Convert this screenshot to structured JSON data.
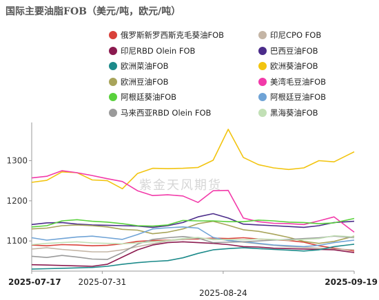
{
  "title": "国际主要油脂FOB（美元/吨，欧元/吨）",
  "watermark": "紫金天风期货",
  "chart_data": {
    "type": "line",
    "title": "国际主要油脂FOB（美元/吨，欧元/吨）",
    "xlabel": "",
    "ylabel": "",
    "ylim": [
      1025,
      1395
    ],
    "yticks": [
      1100,
      1200,
      1300
    ],
    "xticks": [
      "2025-07-17",
      "2025-07-31",
      "2025-08-24",
      "2025-09-19"
    ],
    "x": [
      "2025-07-17",
      "2025-07-20",
      "2025-07-23",
      "2025-07-26",
      "2025-07-29",
      "2025-08-01",
      "2025-08-04",
      "2025-08-07",
      "2025-08-10",
      "2025-08-13",
      "2025-08-16",
      "2025-08-19",
      "2025-08-22",
      "2025-08-25",
      "2025-08-28",
      "2025-08-31",
      "2025-09-03",
      "2025-09-06",
      "2025-09-09",
      "2025-09-12",
      "2025-09-15",
      "2025-09-19"
    ],
    "grid": false,
    "legend_position": "top",
    "series": [
      {
        "name": "俄罗斯新罗西斯克毛葵油FOB",
        "color": "#d9413a",
        "values": [
          1090,
          1088,
          1091,
          1090,
          1088,
          1089,
          1093,
          1099,
          1101,
          1102,
          1104,
          1105,
          1107,
          1106,
          1108,
          1105,
          1103,
          1101,
          1097,
          1088,
          1082,
          1075
        ]
      },
      {
        "name": "印尼CPO FOB",
        "color": "#c4b5a5",
        "values": [
          1080,
          1083,
          1079,
          1076,
          1073,
          1073,
          1078,
          1086,
          1093,
          1100,
          1104,
          1107,
          1105,
          1102,
          1097,
          1093,
          1089,
          1086,
          1084,
          1082,
          1080,
          1078
        ]
      },
      {
        "name": "印尼RBD Olein FOB",
        "color": "#8b1a4f",
        "values": [
          1041,
          1040,
          1039,
          1038,
          1037,
          1042,
          1060,
          1078,
          1090,
          1096,
          1098,
          1096,
          1094,
          1091,
          1086,
          1085,
          1082,
          1081,
          1080,
          1079,
          1078,
          1071
        ]
      },
      {
        "name": "巴西豆油FOB",
        "color": "#4b2c8a",
        "values": [
          1141,
          1145,
          1146,
          1142,
          1140,
          1139,
          1138,
          1137,
          1134,
          1138,
          1146,
          1160,
          1168,
          1157,
          1142,
          1140,
          1138,
          1136,
          1134,
          1138,
          1146,
          1149
        ]
      },
      {
        "name": "欧洲菜油FOB",
        "color": "#1c8a8a",
        "values": [
          1030,
          1031,
          1032,
          1033,
          1034,
          1037,
          1042,
          1046,
          1049,
          1051,
          1058,
          1069,
          1078,
          1081,
          1083,
          1081,
          1079,
          1077,
          1075,
          1078,
          1086,
          1092
        ]
      },
      {
        "name": "欧洲葵油FOB",
        "color": "#f2c40f",
        "values": [
          1246,
          1251,
          1272,
          1270,
          1252,
          1250,
          1230,
          1268,
          1281,
          1280,
          1281,
          1283,
          1301,
          1378,
          1308,
          1290,
          1282,
          1278,
          1282,
          1300,
          1297,
          1322
        ]
      },
      {
        "name": "欧洲豆油FOB",
        "color": "#a8a45a",
        "values": [
          1130,
          1132,
          1138,
          1140,
          1138,
          1135,
          1129,
          1127,
          1118,
          1122,
          1130,
          1143,
          1149,
          1139,
          1128,
          1124,
          1117,
          1109,
          1099,
          1094,
          1099,
          1112
        ]
      },
      {
        "name": "美湾毛豆油FOB",
        "color": "#f23aa9",
        "values": [
          1257,
          1261,
          1275,
          1270,
          1263,
          1255,
          1248,
          1225,
          1213,
          1215,
          1212,
          1196,
          1225,
          1226,
          1157,
          1148,
          1144,
          1143,
          1141,
          1150,
          1160,
          1122
        ]
      },
      {
        "name": "阿根廷葵油FOB",
        "color": "#59d13c",
        "values": [
          1135,
          1138,
          1150,
          1153,
          1149,
          1147,
          1143,
          1138,
          1137,
          1140,
          1151,
          1150,
          1150,
          1148,
          1148,
          1152,
          1150,
          1147,
          1146,
          1143,
          1145,
          1156
        ]
      },
      {
        "name": "阿根廷豆油FOB",
        "color": "#6fa3d6",
        "values": [
          1108,
          1102,
          1106,
          1110,
          1112,
          1108,
          1104,
          1116,
          1130,
          1133,
          1135,
          1132,
          1109,
          1101,
          1098,
          1094,
          1090,
          1088,
          1086,
          1089,
          1096,
          1102
        ]
      },
      {
        "name": "马来西亚RBD Olein FOB",
        "color": "#9a9a9a",
        "values": [
          1062,
          1059,
          1064,
          1060,
          1055,
          1054,
          1071,
          1092,
          1104,
          1108,
          1111,
          1107,
          1096,
          1097,
          1098,
          1100,
          1102,
          1104,
          1106,
          1108,
          1112,
          1108
        ]
      },
      {
        "name": "黑海葵油FOB",
        "color": "#c2e0b6",
        "values": [
          1091,
          1094,
          1096,
          1098,
          1095,
          1094,
          1093,
          1095,
          1098,
          1101,
          1106,
          1109,
          1103,
          1104,
          1103,
          1105,
          1104,
          1102,
          1104,
          1106,
          1113,
          1110
        ]
      }
    ]
  }
}
